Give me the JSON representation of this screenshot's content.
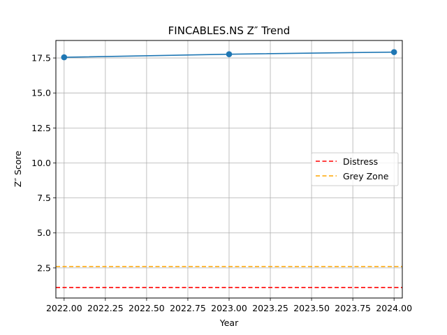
{
  "chart_data": {
    "type": "line",
    "title": "FINCABLES.NS Z″ Trend",
    "xlabel": "Year",
    "ylabel": "Z″ Score",
    "xlim": [
      2021.95,
      2024.05
    ],
    "ylim": [
      0.35,
      18.75
    ],
    "xticks": [
      2022.0,
      2022.25,
      2022.5,
      2022.75,
      2023.0,
      2023.25,
      2023.5,
      2023.75,
      2024.0
    ],
    "xtick_labels": [
      "2022.00",
      "2022.25",
      "2022.50",
      "2022.75",
      "2023.00",
      "2023.25",
      "2023.50",
      "2023.75",
      "2024.00"
    ],
    "yticks": [
      2.5,
      5.0,
      7.5,
      10.0,
      12.5,
      15.0,
      17.5
    ],
    "ytick_labels": [
      "2.5",
      "5.0",
      "7.5",
      "10.0",
      "12.5",
      "15.0",
      "17.5"
    ],
    "grid": true,
    "legend_position": "center-right",
    "series": [
      {
        "x": [
          2022,
          2023,
          2024
        ],
        "values": [
          17.55,
          17.77,
          17.92
        ],
        "color": "#1f77b4",
        "marker": "circle"
      }
    ],
    "reference_lines": [
      {
        "name": "Distress",
        "y": 1.1,
        "color": "#ff0000",
        "style": "dashed"
      },
      {
        "name": "Grey Zone",
        "y": 2.6,
        "color": "#ffa500",
        "style": "dashed"
      }
    ]
  }
}
